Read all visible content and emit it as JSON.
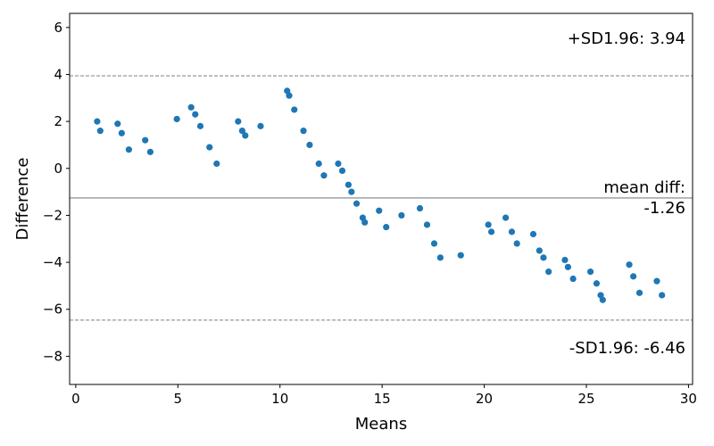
{
  "chart_data": {
    "type": "scatter",
    "xlabel": "Means",
    "ylabel": "Difference",
    "xlim": [
      -0.3,
      30.2
    ],
    "ylim": [
      -9.2,
      6.6
    ],
    "x_ticks": [
      0,
      5,
      10,
      15,
      20,
      25,
      30
    ],
    "y_ticks": [
      -8,
      -6,
      -4,
      -2,
      0,
      2,
      4,
      6
    ],
    "grid": false,
    "point_color": "#1f77b4",
    "points": [
      [
        1.05,
        2.0
      ],
      [
        1.2,
        1.6
      ],
      [
        2.05,
        1.9
      ],
      [
        2.25,
        1.5
      ],
      [
        2.6,
        0.8
      ],
      [
        3.4,
        1.2
      ],
      [
        3.65,
        0.7
      ],
      [
        4.95,
        2.1
      ],
      [
        5.65,
        2.6
      ],
      [
        5.85,
        2.3
      ],
      [
        6.1,
        1.8
      ],
      [
        6.55,
        0.9
      ],
      [
        6.9,
        0.2
      ],
      [
        7.95,
        2.0
      ],
      [
        8.15,
        1.6
      ],
      [
        8.3,
        1.4
      ],
      [
        9.05,
        1.8
      ],
      [
        10.35,
        3.3
      ],
      [
        10.45,
        3.1
      ],
      [
        10.7,
        2.5
      ],
      [
        11.15,
        1.6
      ],
      [
        11.45,
        1.0
      ],
      [
        11.9,
        0.2
      ],
      [
        12.15,
        -0.3
      ],
      [
        12.85,
        0.2
      ],
      [
        13.05,
        -0.1
      ],
      [
        13.35,
        -0.7
      ],
      [
        13.5,
        -1.0
      ],
      [
        13.75,
        -1.5
      ],
      [
        14.05,
        -2.1
      ],
      [
        14.15,
        -2.3
      ],
      [
        14.85,
        -1.8
      ],
      [
        15.2,
        -2.5
      ],
      [
        15.95,
        -2.0
      ],
      [
        16.85,
        -1.7
      ],
      [
        17.2,
        -2.4
      ],
      [
        17.55,
        -3.2
      ],
      [
        17.85,
        -3.8
      ],
      [
        18.85,
        -3.7
      ],
      [
        20.2,
        -2.4
      ],
      [
        20.35,
        -2.7
      ],
      [
        21.05,
        -2.1
      ],
      [
        21.35,
        -2.7
      ],
      [
        21.6,
        -3.2
      ],
      [
        22.4,
        -2.8
      ],
      [
        22.7,
        -3.5
      ],
      [
        22.9,
        -3.8
      ],
      [
        23.15,
        -4.4
      ],
      [
        23.95,
        -3.9
      ],
      [
        24.1,
        -4.2
      ],
      [
        24.35,
        -4.7
      ],
      [
        25.2,
        -4.4
      ],
      [
        25.5,
        -4.9
      ],
      [
        25.7,
        -5.4
      ],
      [
        25.8,
        -5.6
      ],
      [
        27.1,
        -4.1
      ],
      [
        27.3,
        -4.6
      ],
      [
        27.6,
        -5.3
      ],
      [
        28.45,
        -4.8
      ],
      [
        28.7,
        -5.4
      ]
    ],
    "mean_diff": -1.26,
    "upper_loa": 3.94,
    "lower_loa": -6.46,
    "mean_line_color": "#808080",
    "loa_line_color": "#808080",
    "annotations": {
      "upper": "+SD1.96: 3.94",
      "mean_line1": "mean diff:",
      "mean_line2": "-1.26",
      "lower": "-SD1.96: -6.46"
    }
  }
}
